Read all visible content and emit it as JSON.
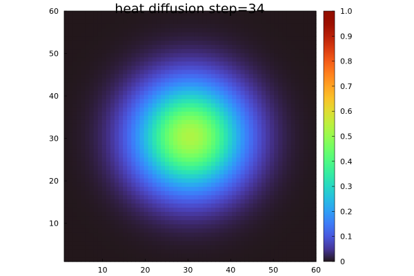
{
  "chart_data": {
    "type": "heatmap",
    "title": "heat diffusion step=34",
    "xlabel": "",
    "ylabel": "",
    "xlim": [
      1,
      60
    ],
    "ylim": [
      1,
      60
    ],
    "x_ticks": [
      10,
      20,
      30,
      40,
      50,
      60
    ],
    "y_ticks": [
      10,
      20,
      30,
      40,
      50,
      60
    ],
    "grid": false,
    "colormap": "turbo",
    "colorbar": {
      "range": [
        0,
        1
      ],
      "ticks": [
        "0",
        "0.1",
        "0.2",
        "0.3",
        "0.4",
        "0.5",
        "0.6",
        "0.7",
        "0.8",
        "0.9",
        "1.0"
      ]
    },
    "grid_size": [
      60,
      60
    ],
    "peak": {
      "x": 30.5,
      "y": 30.5,
      "value": 0.53
    },
    "spread_sigma": 8.5,
    "background_value": 0.0
  }
}
